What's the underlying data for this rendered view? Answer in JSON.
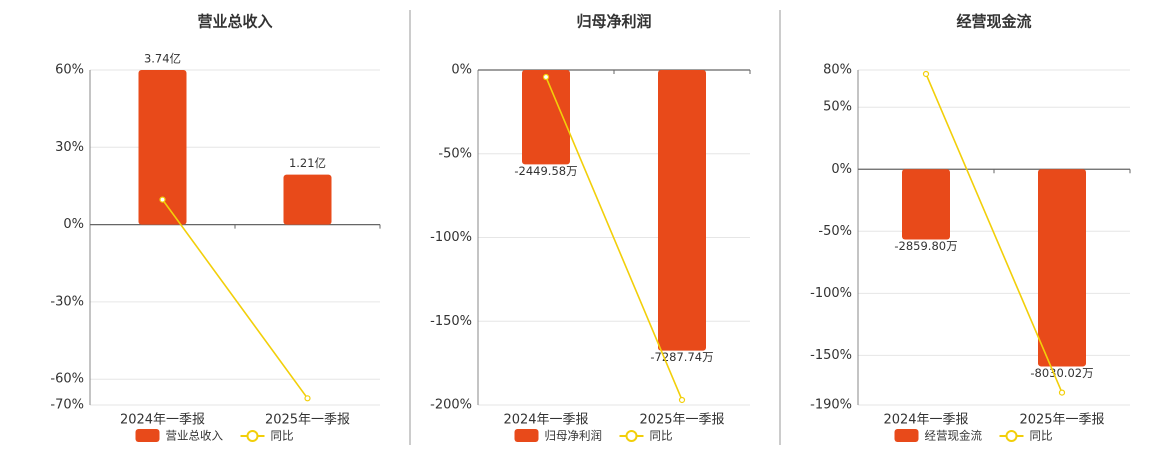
{
  "chart_data": [
    {
      "type": "bar",
      "title": "营业总收入",
      "categories": [
        "2024年一季报",
        "2025年一季报"
      ],
      "series": [
        {
          "name": "营业总收入",
          "type": "bar",
          "color": "#e84a1a",
          "axis": "y2",
          "values": [
            3.74,
            1.21
          ],
          "value_labels": [
            "3.74亿",
            "1.21亿"
          ]
        },
        {
          "name": "同比",
          "type": "line",
          "color": "#f2cf0a",
          "values": [
            9.7,
            -67.4
          ]
        }
      ],
      "ylim": [
        -70,
        60
      ],
      "yticks": [
        {
          "value": 60,
          "label": "60%"
        },
        {
          "value": 30,
          "label": "30%"
        },
        {
          "value": 0,
          "label": "0%"
        },
        {
          "value": -30,
          "label": "-30%"
        },
        {
          "value": -60,
          "label": "-60%"
        },
        {
          "value": -70,
          "label": "-70%"
        }
      ],
      "y2lim": [
        -4.36,
        3.74
      ]
    },
    {
      "type": "bar",
      "title": "归母净利润",
      "categories": [
        "2024年一季报",
        "2025年一季报"
      ],
      "series": [
        {
          "name": "归母净利润",
          "type": "bar",
          "color": "#e84a1a",
          "axis": "y2",
          "values": [
            -2449.58,
            -7287.74
          ],
          "value_labels": [
            "-2449.58万",
            "-7287.74万"
          ]
        },
        {
          "name": "同比",
          "type": "line",
          "color": "#f2cf0a",
          "values": [
            -4.2,
            -197
          ]
        }
      ],
      "ylim": [
        -200,
        0
      ],
      "yticks": [
        {
          "value": 0,
          "label": "0%"
        },
        {
          "value": -50,
          "label": "-50%"
        },
        {
          "value": -100,
          "label": "-100%"
        },
        {
          "value": -150,
          "label": "-150%"
        },
        {
          "value": -200,
          "label": "-200%"
        }
      ],
      "y2lim": [
        -8700,
        0
      ]
    },
    {
      "type": "bar",
      "title": "经营现金流",
      "categories": [
        "2024年一季报",
        "2025年一季报"
      ],
      "series": [
        {
          "name": "经营现金流",
          "type": "bar",
          "color": "#e84a1a",
          "axis": "y2",
          "values": [
            -2859.8,
            -8030.02
          ],
          "value_labels": [
            "-2859.80万",
            "-8030.02万"
          ]
        },
        {
          "name": "同比",
          "type": "line",
          "color": "#f2cf0a",
          "values": [
            76.8,
            -180
          ]
        }
      ],
      "ylim": [
        -190,
        80
      ],
      "yticks": [
        {
          "value": 80,
          "label": "80%"
        },
        {
          "value": 50,
          "label": "50%"
        },
        {
          "value": 0,
          "label": "0%"
        },
        {
          "value": -50,
          "label": "-50%"
        },
        {
          "value": -100,
          "label": "-100%"
        },
        {
          "value": -150,
          "label": "-150%"
        },
        {
          "value": -190,
          "label": "-190%"
        }
      ],
      "y2lim": [
        -9600,
        4040
      ]
    }
  ]
}
